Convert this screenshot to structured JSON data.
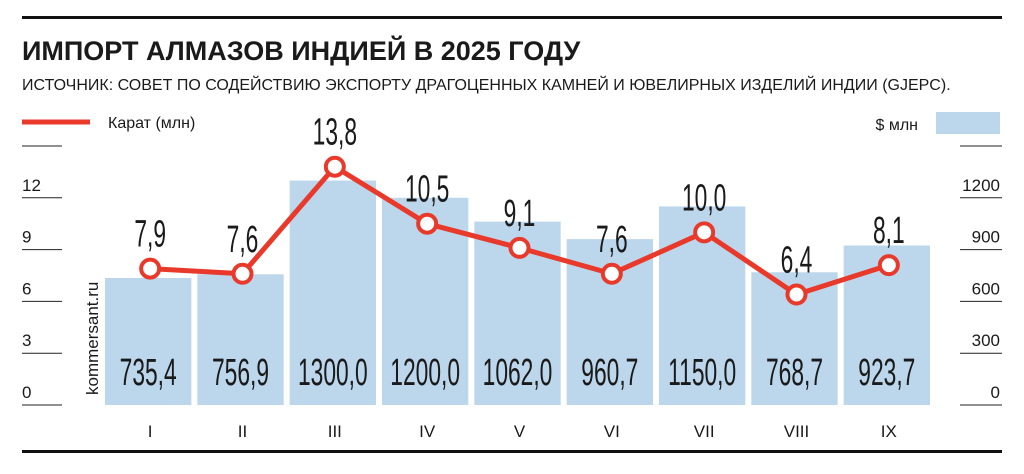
{
  "chart_data": {
    "type": "combo",
    "title": "ИМПОРТ АЛМАЗОВ ИНДИЕЙ В 2025 ГОДУ",
    "subtitle": "ИСТОЧНИК: СОВЕТ ПО СОДЕЙСТВИЮ ЭКСПОРТУ ДРАГОЦЕННЫХ КАМНЕЙ И ЮВЕЛИРНЫХ ИЗДЕЛИЙ ИНДИИ (GJEPC).",
    "watermark": "kommersant.ru",
    "categories": [
      "I",
      "II",
      "III",
      "IV",
      "V",
      "VI",
      "VII",
      "VIII",
      "IX"
    ],
    "series": [
      {
        "name": "$ млн",
        "type": "bar",
        "axis": "y2",
        "color": "#bcd6ec",
        "values": [
          735.4,
          756.9,
          1300.0,
          1200.0,
          1062.0,
          960.7,
          1150.0,
          768.7,
          923.7
        ],
        "value_labels": [
          "735,4",
          "756,9",
          "1300,0",
          "1200,0",
          "1062,0",
          "960,7",
          "1150,0",
          "768,7",
          "923,7"
        ]
      },
      {
        "name": "Карат (млн)",
        "type": "line",
        "axis": "y",
        "color": "#e8392b",
        "values": [
          7.9,
          7.6,
          13.8,
          10.5,
          9.1,
          7.6,
          10.0,
          6.4,
          8.1
        ],
        "value_labels": [
          "7,9",
          "7,6",
          "13,8",
          "10,5",
          "9,1",
          "7,6",
          "10,0",
          "6,4",
          "8,1"
        ]
      }
    ],
    "ylim": [
      0,
      15
    ],
    "yticks": [
      0,
      3,
      6,
      9,
      12
    ],
    "y2lim": [
      0,
      1500
    ],
    "y2ticks": [
      0,
      300,
      600,
      900,
      1200
    ]
  }
}
